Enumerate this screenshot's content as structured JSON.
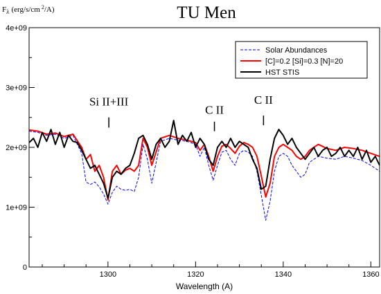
{
  "chart_data": {
    "type": "line",
    "title": "TU Men",
    "ylabel_main": "F",
    "ylabel_sub": "λ",
    "ylabel_unit": "(erg/s/cm",
    "ylabel_sup": "2",
    "ylabel_tail": "/A)",
    "xlabel": "Wavelength (A)",
    "xlim": [
      1282,
      1362
    ],
    "ylim": [
      0,
      4000000000
    ],
    "grid": false,
    "legend_position": "top-right",
    "x_ticks": [
      {
        "value": 1300,
        "label": "1300"
      },
      {
        "value": 1320,
        "label": "1320"
      },
      {
        "value": 1340,
        "label": "1340"
      },
      {
        "value": 1360,
        "label": "1360"
      }
    ],
    "y_ticks": [
      {
        "value": 0,
        "label": "0"
      },
      {
        "value": 1000000000,
        "label": "1e+09"
      },
      {
        "value": 2000000000,
        "label": "2e+09"
      },
      {
        "value": 3000000000,
        "label": "3e+09"
      },
      {
        "value": 4000000000,
        "label": "4e+09"
      }
    ],
    "annotations": [
      {
        "text": "Si II+III",
        "x": 1300.2,
        "label_y": 2700000000,
        "tick_top": 2500000000,
        "tick_bottom": 2330000000
      },
      {
        "text": "C II",
        "x": 1324.3,
        "label_y": 2560000000,
        "tick_top": 2430000000,
        "tick_bottom": 2270000000
      },
      {
        "text": "C II",
        "x": 1335.5,
        "label_y": 2730000000,
        "tick_top": 2530000000,
        "tick_bottom": 2370000000
      }
    ],
    "series": [
      {
        "name": "Solar Abundances",
        "color": "#0000ff",
        "dash": "4,2",
        "width": 1,
        "x": [
          1282,
          1284,
          1286,
          1288,
          1290,
          1292,
          1294,
          1295,
          1296,
          1297,
          1298,
          1299,
          1300,
          1301,
          1302,
          1303,
          1304,
          1305,
          1306,
          1307,
          1308,
          1309,
          1310,
          1312,
          1314,
          1316,
          1318,
          1320,
          1321,
          1322,
          1323,
          1324,
          1325,
          1326,
          1327,
          1328,
          1329,
          1330,
          1331,
          1332,
          1333,
          1334,
          1335,
          1336,
          1337,
          1338,
          1339,
          1340,
          1341,
          1342,
          1343,
          1344,
          1345,
          1346,
          1348,
          1350,
          1352,
          1354,
          1356,
          1358,
          1360,
          1362
        ],
        "y": [
          2270000000,
          2250000000,
          2200000000,
          2220000000,
          2150000000,
          2200000000,
          1900000000,
          1420000000,
          1380000000,
          1420000000,
          1340000000,
          1220000000,
          1050000000,
          1250000000,
          1350000000,
          1300000000,
          1280000000,
          1300000000,
          1260000000,
          1500000000,
          2050000000,
          1800000000,
          1400000000,
          2100000000,
          2150000000,
          2120000000,
          2100000000,
          2050000000,
          1850000000,
          2000000000,
          1700000000,
          1450000000,
          1700000000,
          1920000000,
          1950000000,
          1800000000,
          1700000000,
          1900000000,
          1950000000,
          1920000000,
          1850000000,
          1600000000,
          1200000000,
          780000000,
          1100000000,
          1600000000,
          1850000000,
          1900000000,
          1850000000,
          1700000000,
          1600000000,
          1500000000,
          1550000000,
          1750000000,
          1850000000,
          1820000000,
          1800000000,
          1850000000,
          1820000000,
          1780000000,
          1700000000,
          1600000000
        ]
      },
      {
        "name": "[C]=0.2 [Si]=0.3 [N]=20",
        "color": "#ff0000",
        "dash": "",
        "width": 2,
        "x": [
          1282,
          1284,
          1286,
          1288,
          1290,
          1292,
          1294,
          1295,
          1296,
          1297,
          1298,
          1299,
          1300,
          1301,
          1302,
          1303,
          1304,
          1305,
          1306,
          1307,
          1308,
          1309,
          1310,
          1312,
          1314,
          1316,
          1318,
          1320,
          1321,
          1322,
          1323,
          1324,
          1325,
          1326,
          1327,
          1328,
          1329,
          1330,
          1331,
          1332,
          1333,
          1334,
          1335,
          1336,
          1337,
          1338,
          1339,
          1340,
          1341,
          1342,
          1343,
          1344,
          1345,
          1346,
          1348,
          1350,
          1352,
          1354,
          1356,
          1358,
          1360,
          1362
        ],
        "y": [
          2290000000,
          2270000000,
          2220000000,
          2240000000,
          2180000000,
          2220000000,
          2000000000,
          1800000000,
          1880000000,
          1600000000,
          1700000000,
          1500000000,
          1120000000,
          1600000000,
          1700000000,
          1550000000,
          1620000000,
          1650000000,
          1600000000,
          1700000000,
          2150000000,
          2000000000,
          1700000000,
          2150000000,
          2200000000,
          2150000000,
          2120000000,
          2080000000,
          1950000000,
          2050000000,
          1850000000,
          1600000000,
          1850000000,
          2020000000,
          2050000000,
          1980000000,
          1900000000,
          2020000000,
          2080000000,
          2050000000,
          2000000000,
          1850000000,
          1520000000,
          1170000000,
          1400000000,
          1850000000,
          2000000000,
          2050000000,
          2000000000,
          1950000000,
          1850000000,
          1800000000,
          1850000000,
          1950000000,
          2050000000,
          1980000000,
          1950000000,
          2000000000,
          1980000000,
          1950000000,
          1900000000,
          1850000000
        ]
      },
      {
        "name": "HST STIS",
        "color": "#000000",
        "dash": "",
        "width": 2,
        "x": [
          1282,
          1283,
          1284,
          1285,
          1286,
          1287,
          1288,
          1289,
          1290,
          1291,
          1292,
          1293,
          1294,
          1295,
          1296,
          1297,
          1298,
          1299,
          1300,
          1301,
          1302,
          1303,
          1304,
          1305,
          1306,
          1307,
          1308,
          1309,
          1310,
          1311,
          1312,
          1313,
          1314,
          1315,
          1316,
          1317,
          1318,
          1319,
          1320,
          1321,
          1322,
          1323,
          1324,
          1325,
          1326,
          1327,
          1328,
          1329,
          1330,
          1331,
          1332,
          1333,
          1334,
          1335,
          1336,
          1337,
          1338,
          1339,
          1340,
          1341,
          1342,
          1343,
          1344,
          1345,
          1346,
          1347,
          1348,
          1349,
          1350,
          1351,
          1352,
          1353,
          1354,
          1355,
          1356,
          1357,
          1358,
          1359,
          1360,
          1361,
          1362
        ],
        "y": [
          2080000000,
          2150000000,
          2000000000,
          2250000000,
          2100000000,
          2300000000,
          2050000000,
          2250000000,
          2000000000,
          2200000000,
          2100000000,
          2080000000,
          1950000000,
          1800000000,
          1650000000,
          1700000000,
          1550000000,
          1400000000,
          1150000000,
          1500000000,
          1600000000,
          1550000000,
          1650000000,
          1700000000,
          1900000000,
          2150000000,
          2200000000,
          2050000000,
          1800000000,
          2050000000,
          2150000000,
          2000000000,
          2100000000,
          2450000000,
          2050000000,
          2200000000,
          2100000000,
          2250000000,
          2000000000,
          2150000000,
          2050000000,
          1800000000,
          1700000000,
          2000000000,
          2100000000,
          2000000000,
          2150000000,
          2000000000,
          2100000000,
          2050000000,
          2000000000,
          1800000000,
          1650000000,
          1300000000,
          1350000000,
          1800000000,
          2150000000,
          2300000000,
          2200000000,
          2050000000,
          2150000000,
          2000000000,
          1900000000,
          1800000000,
          1900000000,
          2000000000,
          1850000000,
          1950000000,
          2000000000,
          1850000000,
          1900000000,
          2000000000,
          1850000000,
          1950000000,
          1850000000,
          2000000000,
          1800000000,
          1950000000,
          1750000000,
          1850000000,
          1700000000
        ]
      }
    ]
  }
}
